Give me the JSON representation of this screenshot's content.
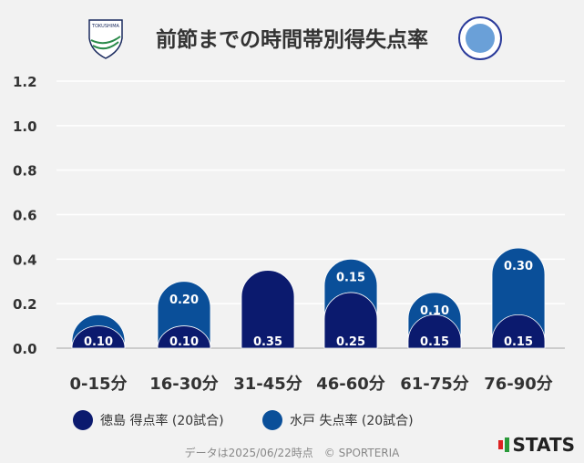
{
  "title": "前節までの時間帯別得失点率",
  "logos": {
    "left": "TOKUSHIMA VORTIS",
    "right": "FC MITO HOLLYHOCK",
    "brand": "STATS"
  },
  "footer": "データは2025/06/22時点　© SPORTERIA",
  "chart_data": {
    "type": "bar",
    "stacked": true,
    "categories": [
      "0-15分",
      "16-30分",
      "31-45分",
      "46-60分",
      "61-75分",
      "76-90分"
    ],
    "series": [
      {
        "name": "徳島 得点率 (20試合)",
        "color": "#0b1a6e",
        "values": [
          0.1,
          0.1,
          0.35,
          0.25,
          0.15,
          0.15
        ],
        "labels": [
          "0.10",
          "0.10",
          "0.35",
          "0.25",
          "0.15",
          "0.15"
        ]
      },
      {
        "name": "水戸 失点率 (20試合)",
        "color": "#0a4f99",
        "values": [
          0.05,
          0.2,
          0.0,
          0.15,
          0.1,
          0.3
        ],
        "labels": [
          "",
          "0.20",
          "",
          "0.15",
          "0.10",
          "0.30"
        ]
      }
    ],
    "yticks": [
      "0.0",
      "0.2",
      "0.4",
      "0.6",
      "0.8",
      "1.0",
      "1.2"
    ],
    "ylim": [
      0,
      1.2
    ],
    "grid": true,
    "legend": "bottom"
  }
}
